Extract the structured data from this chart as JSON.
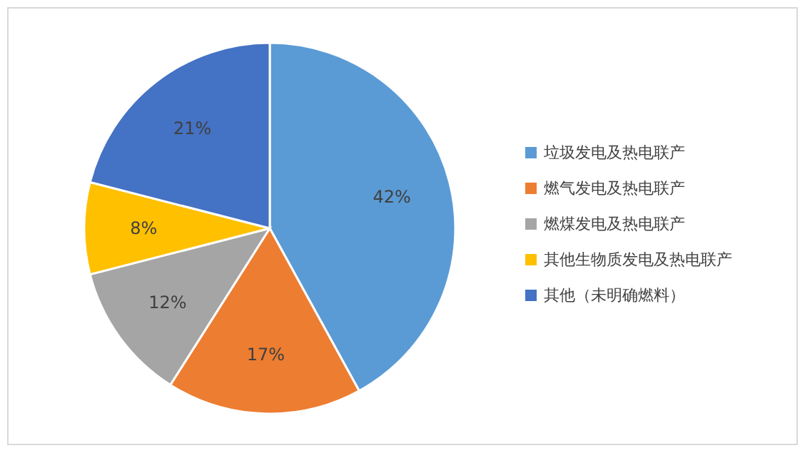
{
  "chart_data": {
    "type": "pie",
    "categories": [
      "垃圾发电及热电联产",
      "燃气发电及热电联产",
      "燃煤发电及热电联产",
      "其他生物质发电及热电联产",
      "其他（未明确燃料）"
    ],
    "values": [
      42,
      17,
      12,
      8,
      21
    ],
    "colors": [
      "#5b9bd5",
      "#ed7d31",
      "#a5a5a5",
      "#ffc000",
      "#4472c4"
    ],
    "value_labels": [
      "42%",
      "17%",
      "12%",
      "8%",
      "21%"
    ],
    "legend": "right"
  }
}
